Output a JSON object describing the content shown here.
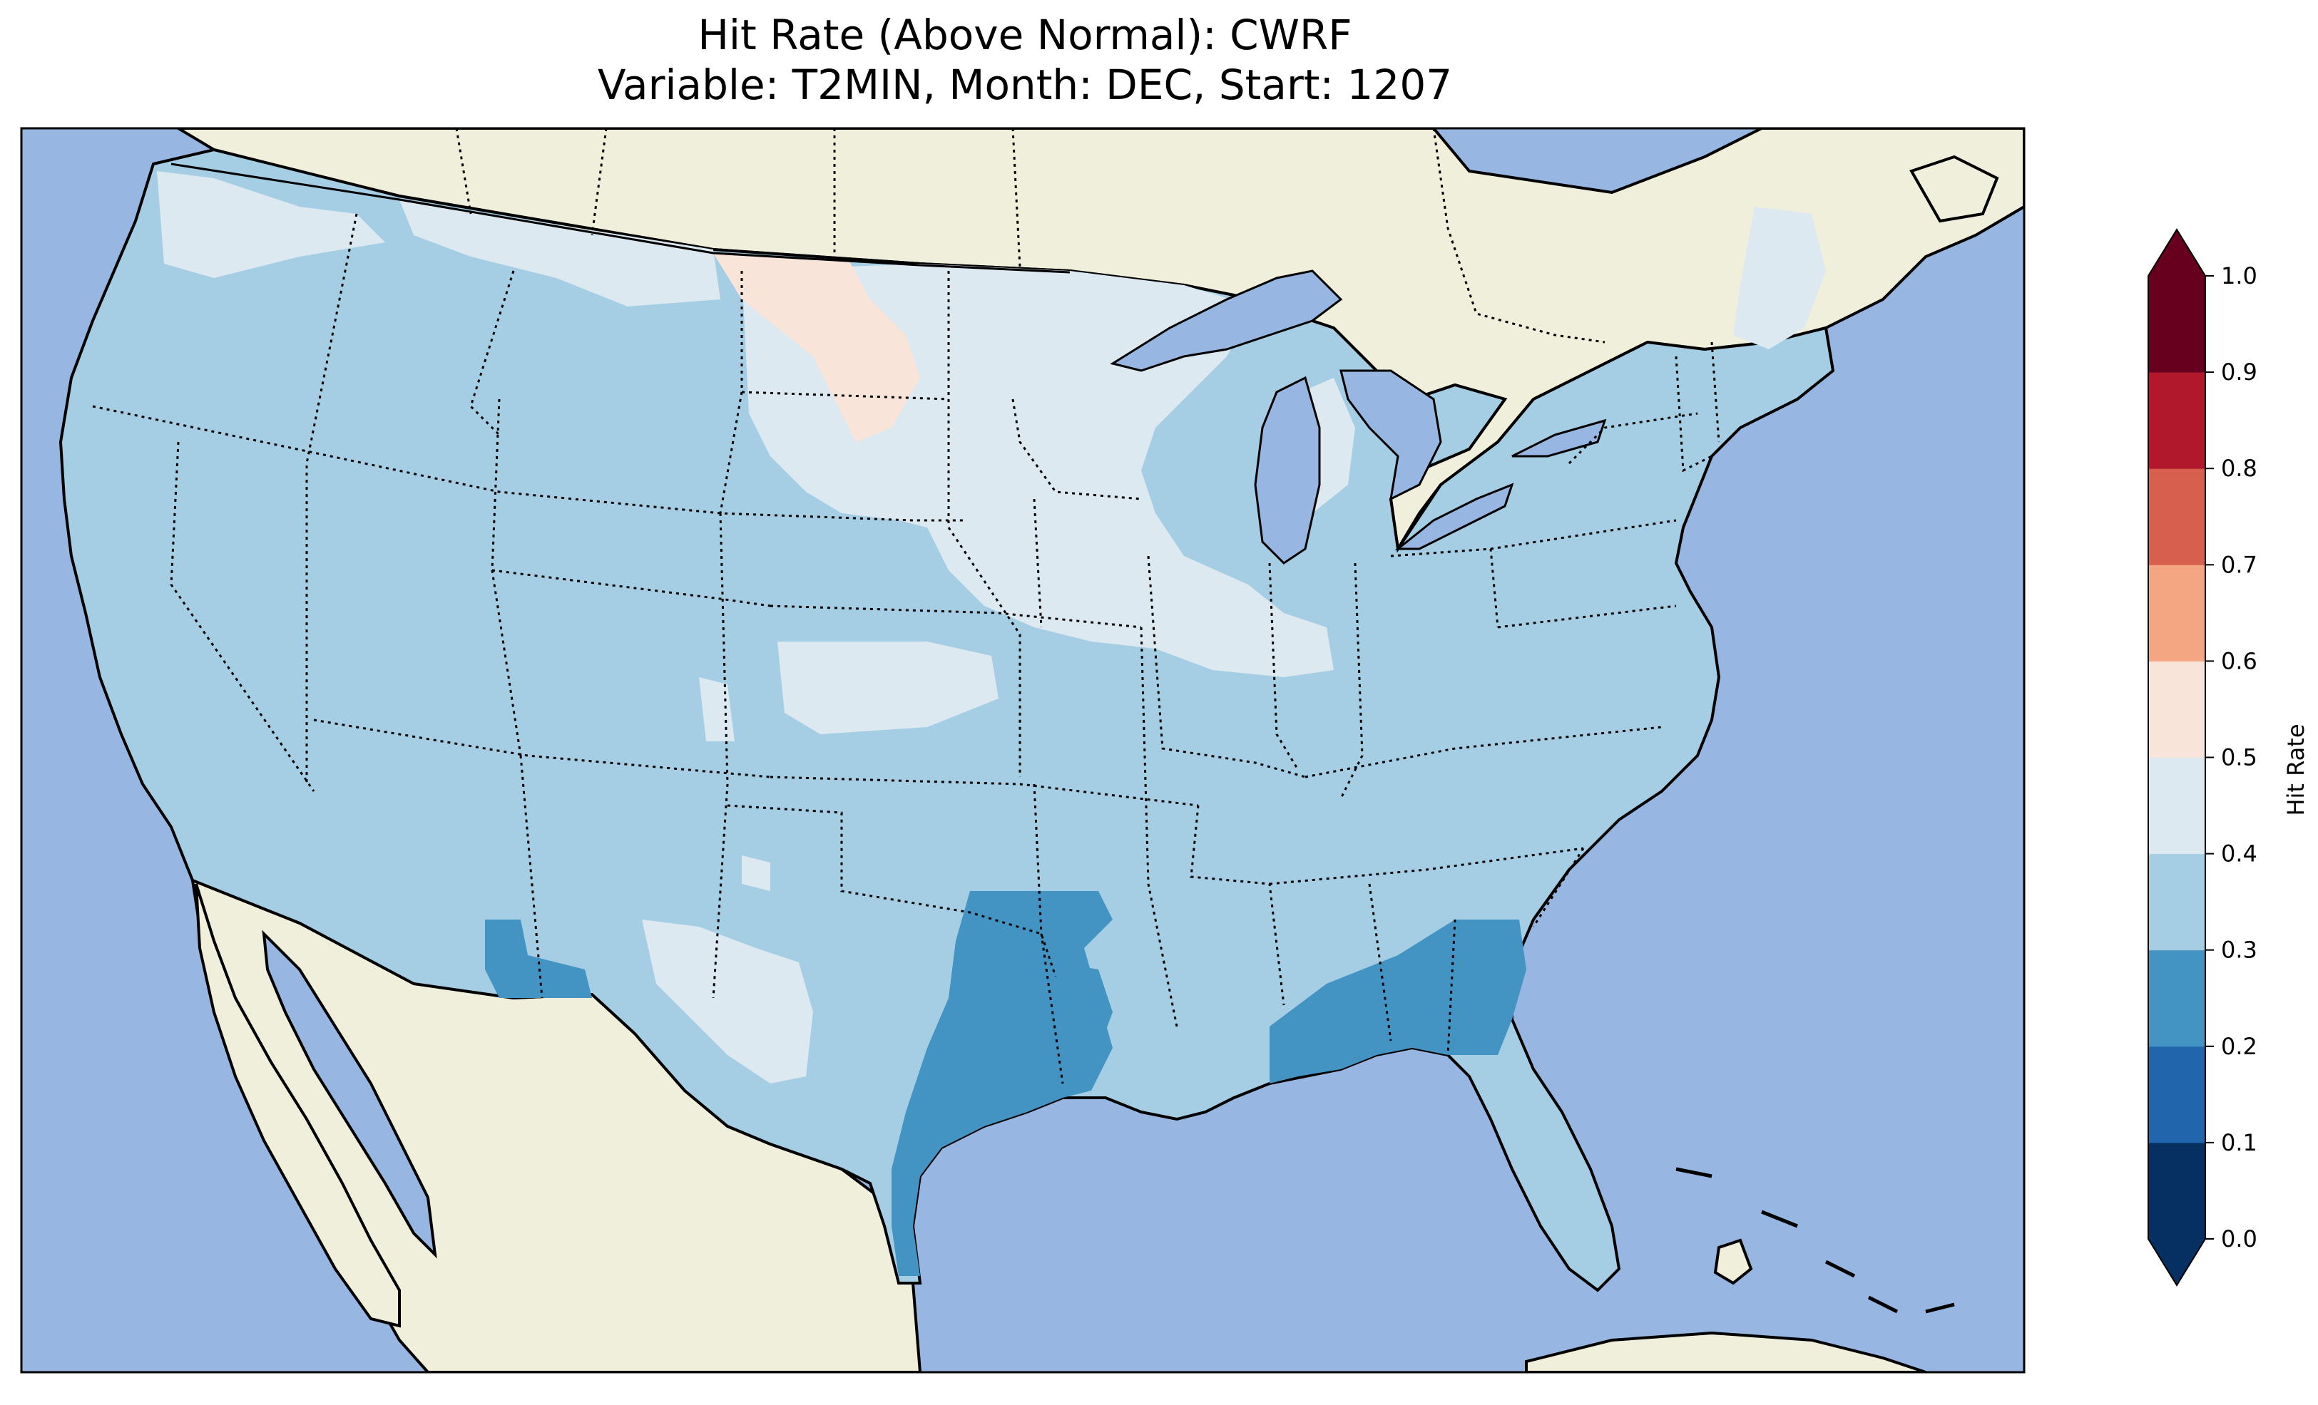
{
  "title": {
    "line1": "Hit Rate (Above Normal): CWRF",
    "line2": "Variable: T2MIN, Month: DEC, Start: 1207"
  },
  "colors": {
    "ocean": "#97b6e1",
    "land": "#efefdb",
    "border": "#000000"
  },
  "colorbar": {
    "label": "Hit Rate",
    "ticks": [
      "0.0",
      "0.1",
      "0.2",
      "0.3",
      "0.4",
      "0.5",
      "0.6",
      "0.7",
      "0.8",
      "0.9",
      "1.0"
    ],
    "bins": [
      {
        "range": [
          0.0,
          0.1
        ],
        "color": "#053061"
      },
      {
        "range": [
          0.1,
          0.2
        ],
        "color": "#2166ac"
      },
      {
        "range": [
          0.2,
          0.3
        ],
        "color": "#4393c3"
      },
      {
        "range": [
          0.3,
          0.4
        ],
        "color": "#a5cde3"
      },
      {
        "range": [
          0.4,
          0.5
        ],
        "color": "#dde9f1"
      },
      {
        "range": [
          0.5,
          0.6
        ],
        "color": "#f9e4da"
      },
      {
        "range": [
          0.6,
          0.7
        ],
        "color": "#f4a582"
      },
      {
        "range": [
          0.7,
          0.8
        ],
        "color": "#d6604d"
      },
      {
        "range": [
          0.8,
          0.9
        ],
        "color": "#b2182b"
      },
      {
        "range": [
          0.9,
          1.0
        ],
        "color": "#67001f"
      }
    ],
    "extend": "both"
  }
}
